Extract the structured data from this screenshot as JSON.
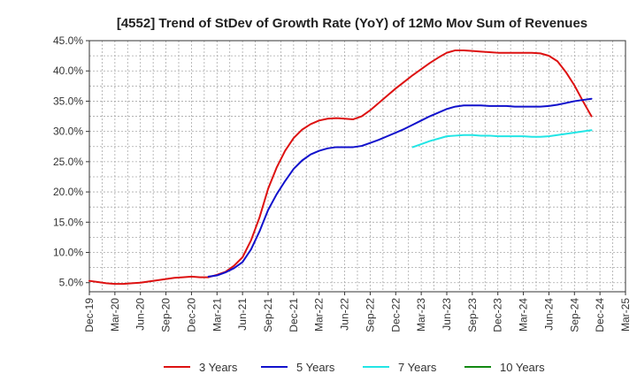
{
  "chart_data": {
    "type": "line",
    "title": "[4552]  Trend of StDev of Growth Rate (YoY) of 12Mo Mov Sum of Revenues",
    "xlabel": "",
    "ylabel": "",
    "ylim": [
      3.5,
      45.0
    ],
    "yticks": [
      5.0,
      10.0,
      15.0,
      20.0,
      25.0,
      30.0,
      35.0,
      40.0,
      45.0
    ],
    "ytick_labels": [
      "5.0%",
      "10.0%",
      "15.0%",
      "20.0%",
      "25.0%",
      "30.0%",
      "35.0%",
      "40.0%",
      "45.0%"
    ],
    "xlim_months": [
      0,
      63
    ],
    "xtick_labels": [
      "Dec-19",
      "Mar-20",
      "Jun-20",
      "Sep-20",
      "Dec-20",
      "Mar-21",
      "Jun-21",
      "Sep-21",
      "Dec-21",
      "Mar-22",
      "Jun-22",
      "Sep-22",
      "Dec-22",
      "Mar-23",
      "Jun-23",
      "Sep-23",
      "Dec-23",
      "Mar-24",
      "Jun-24",
      "Sep-24",
      "Dec-24",
      "Mar-25"
    ],
    "grid": true,
    "legend_position": "bottom",
    "series": [
      {
        "name": "3 Years",
        "color": "#dd1111",
        "points": [
          [
            0,
            5.3
          ],
          [
            1,
            5.1
          ],
          [
            2,
            4.9
          ],
          [
            3,
            4.8
          ],
          [
            4,
            4.8
          ],
          [
            5,
            4.9
          ],
          [
            6,
            5.0
          ],
          [
            7,
            5.2
          ],
          [
            8,
            5.4
          ],
          [
            9,
            5.6
          ],
          [
            10,
            5.8
          ],
          [
            11,
            5.9
          ],
          [
            12,
            6.0
          ],
          [
            13,
            5.9
          ],
          [
            14,
            5.9
          ],
          [
            15,
            6.3
          ],
          [
            16,
            6.8
          ],
          [
            17,
            7.8
          ],
          [
            18,
            9.2
          ],
          [
            19,
            12.0
          ],
          [
            20,
            15.8
          ],
          [
            21,
            20.5
          ],
          [
            22,
            24.0
          ],
          [
            23,
            26.8
          ],
          [
            24,
            28.9
          ],
          [
            25,
            30.3
          ],
          [
            26,
            31.2
          ],
          [
            27,
            31.8
          ],
          [
            28,
            32.1
          ],
          [
            29,
            32.2
          ],
          [
            30,
            32.1
          ],
          [
            31,
            32.0
          ],
          [
            32,
            32.5
          ],
          [
            33,
            33.5
          ],
          [
            34,
            34.7
          ],
          [
            35,
            35.9
          ],
          [
            36,
            37.1
          ],
          [
            37,
            38.2
          ],
          [
            38,
            39.3
          ],
          [
            39,
            40.3
          ],
          [
            40,
            41.3
          ],
          [
            41,
            42.2
          ],
          [
            42,
            43.0
          ],
          [
            43,
            43.4
          ],
          [
            44,
            43.4
          ],
          [
            45,
            43.3
          ],
          [
            46,
            43.2
          ],
          [
            47,
            43.1
          ],
          [
            48,
            43.0
          ],
          [
            49,
            43.0
          ],
          [
            50,
            43.0
          ],
          [
            51,
            43.0
          ],
          [
            52,
            43.0
          ],
          [
            53,
            42.9
          ],
          [
            54,
            42.5
          ],
          [
            55,
            41.6
          ],
          [
            56,
            39.8
          ],
          [
            57,
            37.6
          ],
          [
            58,
            35.0
          ],
          [
            59,
            32.5
          ]
        ]
      },
      {
        "name": "5 Years",
        "color": "#1111cc",
        "points": [
          [
            14,
            6.0
          ],
          [
            15,
            6.2
          ],
          [
            16,
            6.7
          ],
          [
            17,
            7.4
          ],
          [
            18,
            8.4
          ],
          [
            19,
            10.5
          ],
          [
            20,
            13.5
          ],
          [
            21,
            17.0
          ],
          [
            22,
            19.6
          ],
          [
            23,
            21.8
          ],
          [
            24,
            23.8
          ],
          [
            25,
            25.2
          ],
          [
            26,
            26.2
          ],
          [
            27,
            26.8
          ],
          [
            28,
            27.2
          ],
          [
            29,
            27.4
          ],
          [
            30,
            27.4
          ],
          [
            31,
            27.4
          ],
          [
            32,
            27.6
          ],
          [
            33,
            28.1
          ],
          [
            34,
            28.6
          ],
          [
            35,
            29.2
          ],
          [
            36,
            29.8
          ],
          [
            37,
            30.4
          ],
          [
            38,
            31.1
          ],
          [
            39,
            31.8
          ],
          [
            40,
            32.5
          ],
          [
            41,
            33.1
          ],
          [
            42,
            33.7
          ],
          [
            43,
            34.1
          ],
          [
            44,
            34.3
          ],
          [
            45,
            34.3
          ],
          [
            46,
            34.3
          ],
          [
            47,
            34.2
          ],
          [
            48,
            34.2
          ],
          [
            49,
            34.2
          ],
          [
            50,
            34.1
          ],
          [
            51,
            34.1
          ],
          [
            52,
            34.1
          ],
          [
            53,
            34.1
          ],
          [
            54,
            34.2
          ],
          [
            55,
            34.4
          ],
          [
            56,
            34.7
          ],
          [
            57,
            35.0
          ],
          [
            58,
            35.2
          ],
          [
            59,
            35.4
          ]
        ]
      },
      {
        "name": "7 Years",
        "color": "#22e5e5",
        "points": [
          [
            38,
            27.4
          ],
          [
            39,
            27.9
          ],
          [
            40,
            28.4
          ],
          [
            41,
            28.8
          ],
          [
            42,
            29.2
          ],
          [
            43,
            29.3
          ],
          [
            44,
            29.4
          ],
          [
            45,
            29.4
          ],
          [
            46,
            29.3
          ],
          [
            47,
            29.3
          ],
          [
            48,
            29.2
          ],
          [
            49,
            29.2
          ],
          [
            50,
            29.2
          ],
          [
            51,
            29.2
          ],
          [
            52,
            29.1
          ],
          [
            53,
            29.1
          ],
          [
            54,
            29.2
          ],
          [
            55,
            29.4
          ],
          [
            56,
            29.6
          ],
          [
            57,
            29.8
          ],
          [
            58,
            30.0
          ],
          [
            59,
            30.2
          ]
        ]
      },
      {
        "name": "10 Years",
        "color": "#118811",
        "points": []
      }
    ]
  }
}
